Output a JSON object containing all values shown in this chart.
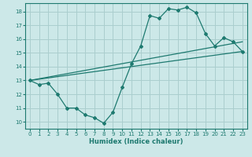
{
  "xlabel": "Humidex (Indice chaleur)",
  "ylabel": "",
  "background_color": "#cce8e8",
  "grid_color": "#aacece",
  "line_color": "#1e7a70",
  "xlim": [
    -0.5,
    23.5
  ],
  "ylim": [
    9.5,
    18.6
  ],
  "xticks": [
    0,
    1,
    2,
    3,
    4,
    5,
    6,
    7,
    8,
    9,
    10,
    11,
    12,
    13,
    14,
    15,
    16,
    17,
    18,
    19,
    20,
    21,
    22,
    23
  ],
  "yticks": [
    10,
    11,
    12,
    13,
    14,
    15,
    16,
    17,
    18
  ],
  "line1_x": [
    0,
    1,
    2,
    3,
    4,
    5,
    6,
    7,
    8,
    9,
    10,
    11,
    12,
    13,
    14,
    15,
    16,
    17,
    18,
    19,
    20,
    21,
    22,
    23
  ],
  "line1_y": [
    13.0,
    12.7,
    12.8,
    12.0,
    11.0,
    11.0,
    10.5,
    10.3,
    9.9,
    10.7,
    12.5,
    14.2,
    15.5,
    17.7,
    17.5,
    18.2,
    18.1,
    18.3,
    17.9,
    16.4,
    15.5,
    16.1,
    15.8,
    15.1
  ],
  "line2_x": [
    0,
    23
  ],
  "line2_y": [
    13.0,
    15.1
  ],
  "line3_x": [
    0,
    23
  ],
  "line3_y": [
    13.0,
    15.8
  ]
}
